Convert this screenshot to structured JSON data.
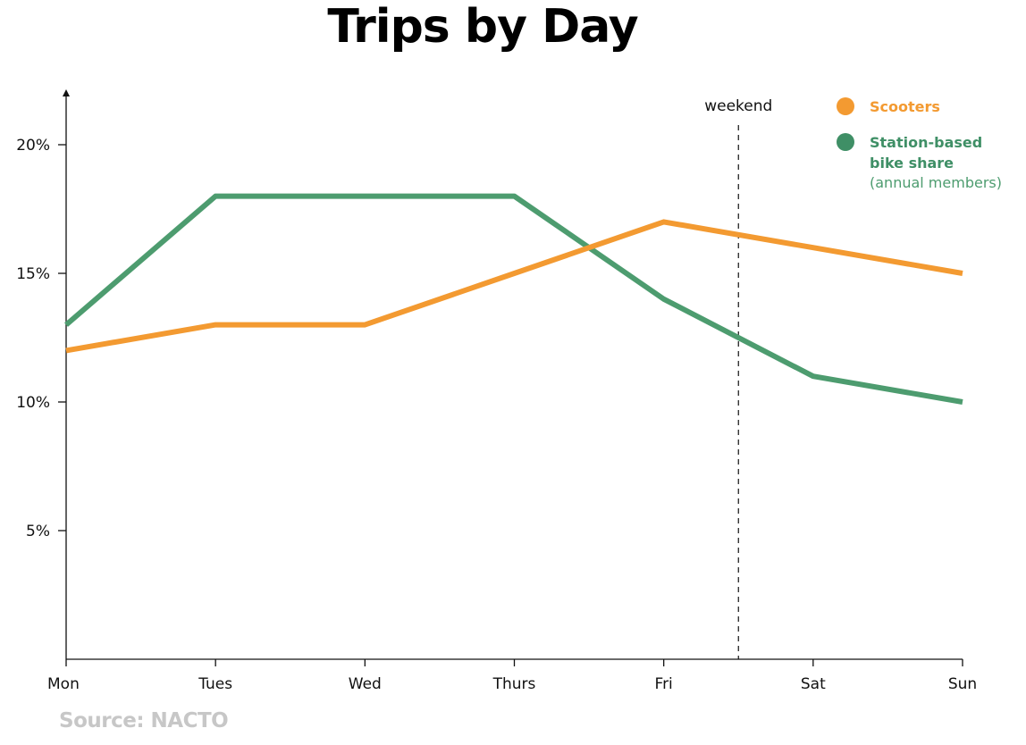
{
  "chart_data": {
    "type": "line",
    "title": "Trips by Day",
    "categories": [
      "Mon",
      "Tues",
      "Wed",
      "Thurs",
      "Fri",
      "Sat",
      "Sun"
    ],
    "series": [
      {
        "name": "Scooters",
        "color": "#f39a31",
        "values": [
          12,
          13,
          13,
          15,
          17,
          16,
          15
        ]
      },
      {
        "name": "Station-based bike share",
        "name_lines": [
          "Station-based",
          "bike share"
        ],
        "note": "(annual members)",
        "color": "#4d9c6f",
        "values": [
          13,
          18,
          18,
          18,
          14,
          11,
          10
        ]
      }
    ],
    "y_ticks": [
      {
        "value": 20,
        "label": "20%"
      },
      {
        "value": 15,
        "label": "15%"
      },
      {
        "value": 10,
        "label": "10%"
      },
      {
        "value": 5,
        "label": "5%"
      }
    ],
    "ylim": [
      0,
      21.5
    ],
    "y_unit": "%",
    "grid": false,
    "legend_position": "top-right",
    "annotation": {
      "label": "weekend",
      "x_between": [
        "Fri",
        "Sat"
      ],
      "style": "dashed vertical line"
    },
    "source": "Source: NACTO"
  }
}
